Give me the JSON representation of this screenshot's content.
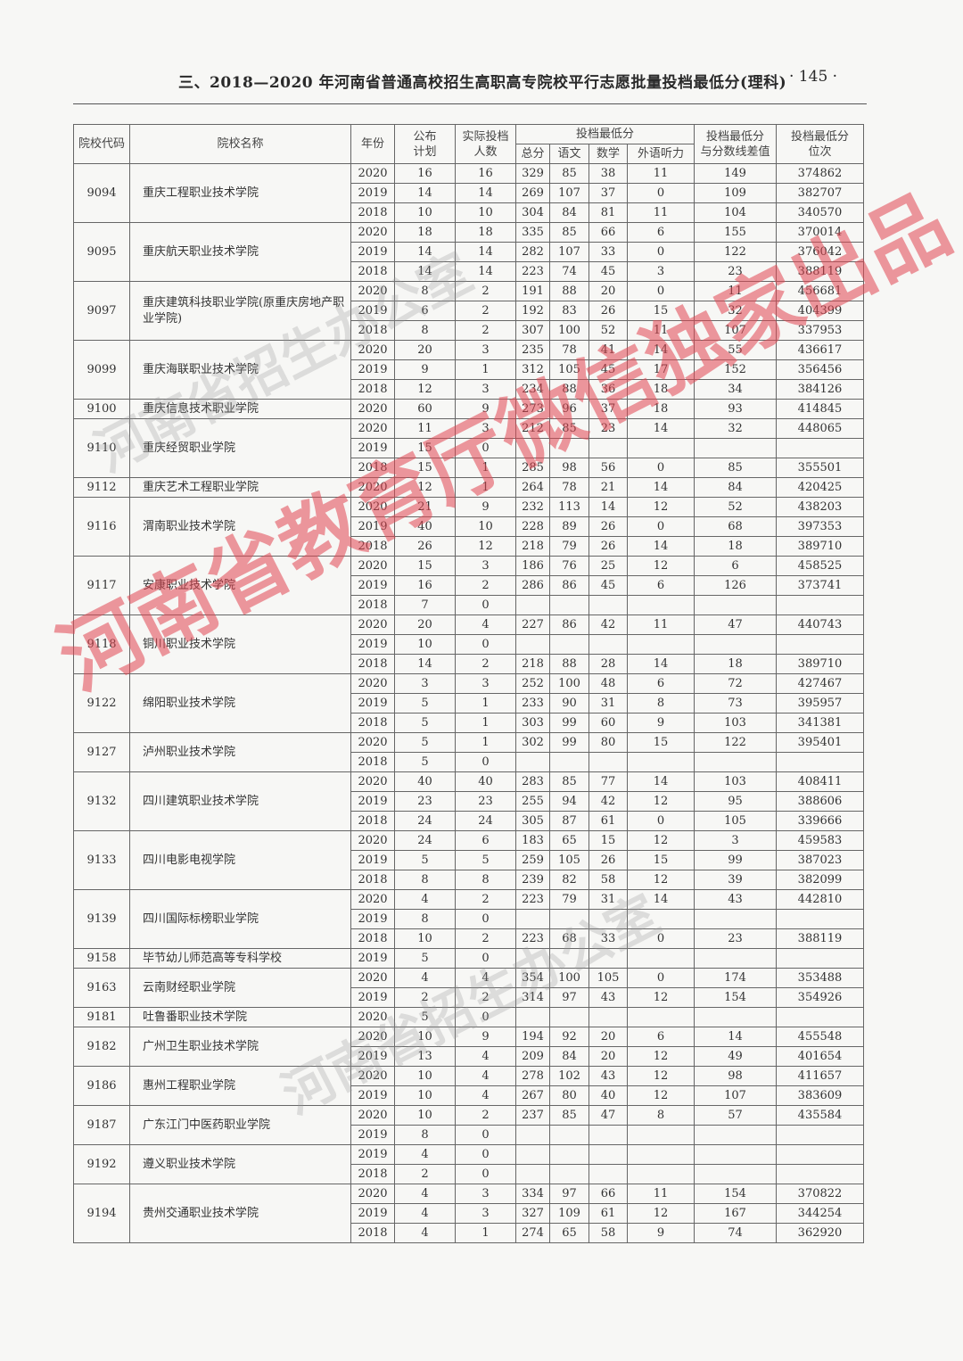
{
  "header": {
    "title": "三、2018—2020 年河南省普通高校招生高职高专院校平行志愿批量投档最低分(理科)",
    "page_number": "· 145 ·"
  },
  "table": {
    "headers": {
      "code": "院校代码",
      "name": "院校名称",
      "year": "年份",
      "plan": "公布\n计划",
      "actual": "实际投档\n人数",
      "min_score": "投档最低分",
      "total": "总分",
      "chinese": "语文",
      "math": "数学",
      "foreign_listening": "外语听力",
      "diff": "投档最低分\n与分数线差值",
      "rank": "投档最低分\n位次"
    },
    "schools": [
      {
        "code": "9094",
        "name": "重庆工程职业技术学院",
        "rows": [
          [
            "2020",
            "16",
            "16",
            "329",
            "85",
            "38",
            "11",
            "149",
            "374862"
          ],
          [
            "2019",
            "14",
            "14",
            "269",
            "107",
            "37",
            "0",
            "109",
            "382707"
          ],
          [
            "2018",
            "10",
            "10",
            "304",
            "84",
            "81",
            "11",
            "104",
            "340570"
          ]
        ]
      },
      {
        "code": "9095",
        "name": "重庆航天职业技术学院",
        "rows": [
          [
            "2020",
            "18",
            "18",
            "335",
            "85",
            "66",
            "6",
            "155",
            "370014"
          ],
          [
            "2019",
            "14",
            "14",
            "282",
            "107",
            "33",
            "0",
            "122",
            "376042"
          ],
          [
            "2018",
            "14",
            "14",
            "223",
            "74",
            "45",
            "3",
            "23",
            "388119"
          ]
        ]
      },
      {
        "code": "9097",
        "name": "重庆建筑科技职业学院(原重庆房地产职业学院)",
        "rows": [
          [
            "2020",
            "8",
            "2",
            "191",
            "88",
            "20",
            "0",
            "11",
            "456681"
          ],
          [
            "2019",
            "6",
            "2",
            "192",
            "83",
            "26",
            "15",
            "32",
            "404399"
          ],
          [
            "2018",
            "8",
            "2",
            "307",
            "100",
            "52",
            "11",
            "107",
            "337953"
          ]
        ]
      },
      {
        "code": "9099",
        "name": "重庆海联职业技术学院",
        "rows": [
          [
            "2020",
            "20",
            "3",
            "235",
            "78",
            "41",
            "14",
            "55",
            "436617"
          ],
          [
            "2019",
            "9",
            "1",
            "312",
            "105",
            "45",
            "17",
            "152",
            "356456"
          ],
          [
            "2018",
            "12",
            "3",
            "234",
            "88",
            "36",
            "18",
            "34",
            "384126"
          ]
        ]
      },
      {
        "code": "9100",
        "name": "重庆信息技术职业学院",
        "rows": [
          [
            "2020",
            "60",
            "9",
            "273",
            "96",
            "37",
            "18",
            "93",
            "414845"
          ]
        ]
      },
      {
        "code": "9110",
        "name": "重庆经贸职业学院",
        "rows": [
          [
            "2020",
            "11",
            "3",
            "212",
            "85",
            "23",
            "14",
            "32",
            "448065"
          ],
          [
            "2019",
            "15",
            "0",
            "",
            "",
            "",
            "",
            "",
            ""
          ],
          [
            "2018",
            "15",
            "1",
            "285",
            "98",
            "56",
            "0",
            "85",
            "355501"
          ]
        ]
      },
      {
        "code": "9112",
        "name": "重庆艺术工程职业学院",
        "rows": [
          [
            "2020",
            "12",
            "1",
            "264",
            "78",
            "21",
            "14",
            "84",
            "420425"
          ]
        ]
      },
      {
        "code": "9116",
        "name": "渭南职业技术学院",
        "rows": [
          [
            "2020",
            "21",
            "9",
            "232",
            "113",
            "14",
            "12",
            "52",
            "438203"
          ],
          [
            "2019",
            "40",
            "10",
            "228",
            "89",
            "26",
            "0",
            "68",
            "397353"
          ],
          [
            "2018",
            "26",
            "12",
            "218",
            "79",
            "26",
            "14",
            "18",
            "389710"
          ]
        ]
      },
      {
        "code": "9117",
        "name": "安康职业技术学院",
        "rows": [
          [
            "2020",
            "15",
            "3",
            "186",
            "76",
            "25",
            "12",
            "6",
            "458525"
          ],
          [
            "2019",
            "16",
            "2",
            "286",
            "86",
            "45",
            "6",
            "126",
            "373741"
          ],
          [
            "2018",
            "7",
            "0",
            "",
            "",
            "",
            "",
            "",
            ""
          ]
        ]
      },
      {
        "code": "9118",
        "name": "铜川职业技术学院",
        "rows": [
          [
            "2020",
            "20",
            "4",
            "227",
            "86",
            "42",
            "11",
            "47",
            "440743"
          ],
          [
            "2019",
            "10",
            "0",
            "",
            "",
            "",
            "",
            "",
            ""
          ],
          [
            "2018",
            "14",
            "2",
            "218",
            "88",
            "28",
            "14",
            "18",
            "389710"
          ]
        ]
      },
      {
        "code": "9122",
        "name": "绵阳职业技术学院",
        "rows": [
          [
            "2020",
            "3",
            "3",
            "252",
            "100",
            "48",
            "6",
            "72",
            "427467"
          ],
          [
            "2019",
            "5",
            "1",
            "233",
            "90",
            "31",
            "8",
            "73",
            "395957"
          ],
          [
            "2018",
            "5",
            "1",
            "303",
            "99",
            "60",
            "9",
            "103",
            "341381"
          ]
        ]
      },
      {
        "code": "9127",
        "name": "泸州职业技术学院",
        "rows": [
          [
            "2020",
            "5",
            "1",
            "302",
            "99",
            "80",
            "15",
            "122",
            "395401"
          ],
          [
            "2018",
            "5",
            "0",
            "",
            "",
            "",
            "",
            "",
            ""
          ]
        ]
      },
      {
        "code": "9132",
        "name": "四川建筑职业技术学院",
        "rows": [
          [
            "2020",
            "40",
            "40",
            "283",
            "85",
            "77",
            "14",
            "103",
            "408411"
          ],
          [
            "2019",
            "23",
            "23",
            "255",
            "94",
            "42",
            "12",
            "95",
            "388606"
          ],
          [
            "2018",
            "24",
            "24",
            "305",
            "87",
            "61",
            "0",
            "105",
            "339666"
          ]
        ]
      },
      {
        "code": "9133",
        "name": "四川电影电视学院",
        "rows": [
          [
            "2020",
            "24",
            "6",
            "183",
            "65",
            "15",
            "12",
            "3",
            "459583"
          ],
          [
            "2019",
            "5",
            "5",
            "259",
            "105",
            "26",
            "15",
            "99",
            "387023"
          ],
          [
            "2018",
            "8",
            "8",
            "239",
            "82",
            "58",
            "12",
            "39",
            "382099"
          ]
        ]
      },
      {
        "code": "9139",
        "name": "四川国际标榜职业学院",
        "rows": [
          [
            "2020",
            "4",
            "2",
            "223",
            "79",
            "31",
            "14",
            "43",
            "442810"
          ],
          [
            "2019",
            "8",
            "0",
            "",
            "",
            "",
            "",
            "",
            ""
          ],
          [
            "2018",
            "10",
            "2",
            "223",
            "68",
            "33",
            "0",
            "23",
            "388119"
          ]
        ]
      },
      {
        "code": "9158",
        "name": "毕节幼儿师范高等专科学校",
        "rows": [
          [
            "2019",
            "5",
            "0",
            "",
            "",
            "",
            "",
            "",
            ""
          ]
        ]
      },
      {
        "code": "9163",
        "name": "云南财经职业学院",
        "rows": [
          [
            "2020",
            "4",
            "4",
            "354",
            "100",
            "105",
            "0",
            "174",
            "353488"
          ],
          [
            "2019",
            "2",
            "2",
            "314",
            "97",
            "43",
            "12",
            "154",
            "354926"
          ]
        ]
      },
      {
        "code": "9181",
        "name": "吐鲁番职业技术学院",
        "rows": [
          [
            "2020",
            "5",
            "0",
            "",
            "",
            "",
            "",
            "",
            ""
          ]
        ]
      },
      {
        "code": "9182",
        "name": "广州卫生职业技术学院",
        "rows": [
          [
            "2020",
            "10",
            "9",
            "194",
            "92",
            "20",
            "6",
            "14",
            "455548"
          ],
          [
            "2019",
            "13",
            "4",
            "209",
            "84",
            "20",
            "12",
            "49",
            "401654"
          ]
        ]
      },
      {
        "code": "9186",
        "name": "惠州工程职业学院",
        "rows": [
          [
            "2020",
            "10",
            "4",
            "278",
            "102",
            "43",
            "12",
            "98",
            "411657"
          ],
          [
            "2019",
            "10",
            "4",
            "267",
            "80",
            "40",
            "12",
            "107",
            "383609"
          ]
        ]
      },
      {
        "code": "9187",
        "name": "广东江门中医药职业学院",
        "rows": [
          [
            "2020",
            "10",
            "2",
            "237",
            "85",
            "47",
            "8",
            "57",
            "435584"
          ],
          [
            "2019",
            "8",
            "0",
            "",
            "",
            "",
            "",
            "",
            ""
          ]
        ]
      },
      {
        "code": "9192",
        "name": "遵义职业技术学院",
        "rows": [
          [
            "2019",
            "4",
            "0",
            "",
            "",
            "",
            "",
            "",
            ""
          ],
          [
            "2018",
            "2",
            "0",
            "",
            "",
            "",
            "",
            "",
            ""
          ]
        ]
      },
      {
        "code": "9194",
        "name": "贵州交通职业技术学院",
        "rows": [
          [
            "2020",
            "4",
            "3",
            "334",
            "97",
            "66",
            "11",
            "154",
            "370822"
          ],
          [
            "2019",
            "4",
            "3",
            "327",
            "109",
            "61",
            "12",
            "167",
            "344254"
          ],
          [
            "2018",
            "4",
            "1",
            "274",
            "65",
            "58",
            "9",
            "74",
            "362920"
          ]
        ]
      }
    ]
  },
  "watermarks": {
    "red": "河南省教育厅微信独家出品",
    "gray_1": "河南省招生办公室",
    "gray_2": "河南省招生办公室"
  }
}
